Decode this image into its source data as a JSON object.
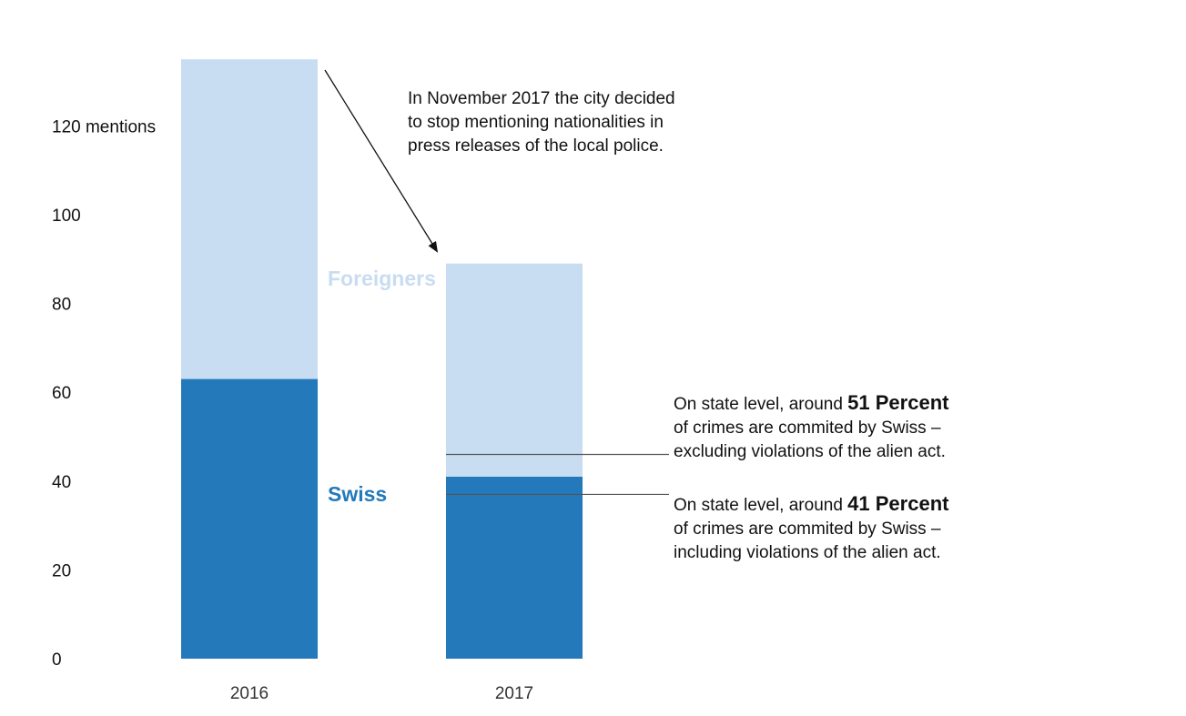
{
  "chart_data": {
    "type": "bar",
    "stacked": true,
    "categories": [
      "2016",
      "2017"
    ],
    "series": [
      {
        "name": "Swiss",
        "values": [
          63,
          41
        ],
        "color": "#2379ba"
      },
      {
        "name": "Foreigners",
        "values": [
          72,
          48
        ],
        "color": "#c8dcf2"
      }
    ],
    "y_ticks": [
      {
        "value": 0,
        "label": "0"
      },
      {
        "value": 20,
        "label": "20"
      },
      {
        "value": 40,
        "label": "40"
      },
      {
        "value": 60,
        "label": "60"
      },
      {
        "value": 80,
        "label": "80"
      },
      {
        "value": 100,
        "label": "100"
      },
      {
        "value": 120,
        "label": "120 mentions"
      }
    ],
    "ylim": [
      0,
      135
    ],
    "grid": false,
    "legend": "inline labels next to bars",
    "reference_values": [
      46,
      37
    ]
  },
  "annotations": {
    "policy_note": "In November 2017 the city decided to stop mentioning nationalities in press releases of the local police.",
    "note_51": {
      "prefix": "On state level, around ",
      "value": "51 Percent",
      "line2": "of crimes are commited by Swiss –",
      "line3": "excluding violations of the alien act."
    },
    "note_41": {
      "prefix": "On state level, around ",
      "value": "41 Percent",
      "line2": "of crimes are commited by Swiss –",
      "line3": "including violations of the alien act."
    }
  }
}
